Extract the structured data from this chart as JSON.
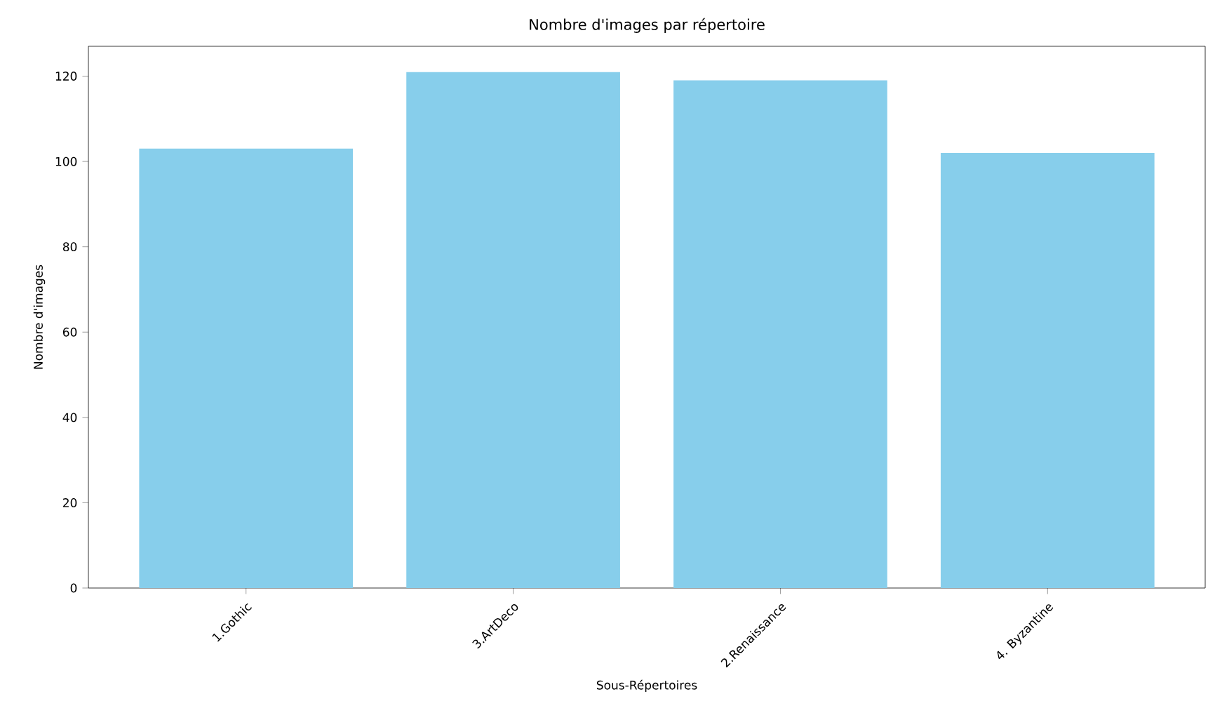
{
  "chart_data": {
    "type": "bar",
    "title": "Nombre d'images par répertoire",
    "xlabel": "Sous-Répertoires",
    "ylabel": "Nombre d'images",
    "categories": [
      "1.Gothic",
      "3.ArtDeco",
      "2.Renaissance",
      "4. Byzantine"
    ],
    "values": [
      103,
      121,
      119,
      102
    ],
    "color": "#87ceeb",
    "ylim": [
      0,
      127
    ],
    "yticks": [
      0,
      20,
      40,
      60,
      80,
      100,
      120
    ]
  }
}
